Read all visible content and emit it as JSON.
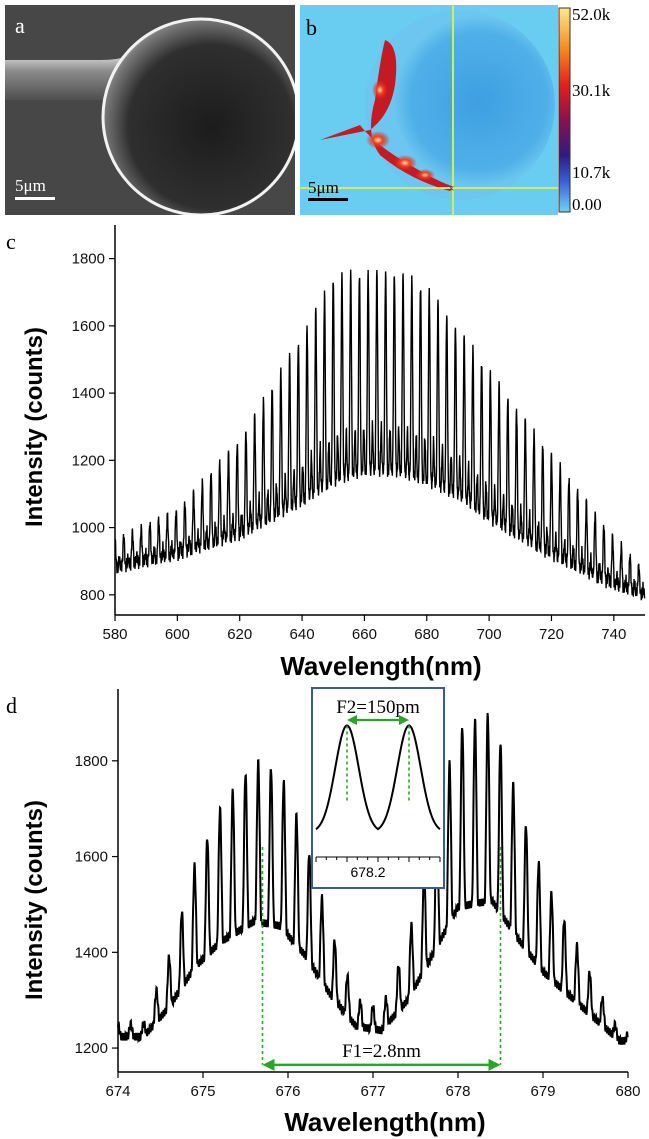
{
  "panels": {
    "a": {
      "label": "a",
      "scalebar": "5μm"
    },
    "b": {
      "label": "b",
      "scalebar": "5μm",
      "colorbar_ticks": [
        "52.0k",
        "30.1k",
        "10.7k",
        "0.00"
      ]
    }
  },
  "chart_data": [
    {
      "id": "c",
      "panel_label": "c",
      "type": "line",
      "xlabel": "Wavelength(nm)",
      "ylabel": "Intensity (counts)",
      "xlim": [
        580,
        750
      ],
      "ylim": [
        740,
        1900
      ],
      "xticks": [
        580,
        600,
        620,
        640,
        660,
        680,
        700,
        720,
        740
      ],
      "yticks": [
        800,
        1000,
        1200,
        1400,
        1600,
        1800
      ],
      "envelope": {
        "x": [
          580,
          600,
          620,
          640,
          650,
          660,
          670,
          680,
          690,
          700,
          720,
          740,
          750
        ],
        "baseline": [
          880,
          920,
          980,
          1080,
          1140,
          1170,
          1170,
          1140,
          1100,
          1030,
          920,
          830,
          800
        ],
        "peak": [
          980,
          1080,
          1320,
          1680,
          1880,
          1890,
          1890,
          1840,
          1700,
          1560,
          1280,
          1000,
          880
        ]
      },
      "fringe_period_nm": 2.8,
      "series_color": "#000000"
    },
    {
      "id": "d",
      "panel_label": "d",
      "type": "line",
      "xlabel": "Wavelength(nm)",
      "ylabel": "Intensity (counts)",
      "xlim": [
        674,
        680
      ],
      "ylim": [
        1150,
        1950
      ],
      "xticks": [
        674,
        675,
        676,
        677,
        678,
        679,
        680
      ],
      "yticks": [
        1200,
        1400,
        1600,
        1800
      ],
      "peaks": [
        {
          "x": 674.3,
          "y": 1250
        },
        {
          "x": 674.6,
          "y": 1390
        },
        {
          "x": 674.9,
          "y": 1580
        },
        {
          "x": 675.2,
          "y": 1700
        },
        {
          "x": 675.6,
          "y": 1800
        },
        {
          "x": 675.9,
          "y": 1780
        },
        {
          "x": 676.2,
          "y": 1640
        },
        {
          "x": 676.5,
          "y": 1450
        },
        {
          "x": 676.8,
          "y": 1300
        },
        {
          "x": 677.1,
          "y": 1280
        },
        {
          "x": 677.4,
          "y": 1420
        },
        {
          "x": 677.7,
          "y": 1640
        },
        {
          "x": 678.0,
          "y": 1870
        },
        {
          "x": 678.4,
          "y": 1900
        },
        {
          "x": 678.7,
          "y": 1720
        },
        {
          "x": 679.0,
          "y": 1560
        },
        {
          "x": 679.3,
          "y": 1450
        },
        {
          "x": 679.6,
          "y": 1340
        },
        {
          "x": 679.9,
          "y": 1230
        }
      ],
      "annotation_F1": {
        "label": "F1=2.8nm",
        "x_start": 675.7,
        "x_end": 678.5,
        "y": 1165
      },
      "inset": {
        "annotation_F2": "F2=150pm",
        "tick_label": "678.2",
        "peak_x": [
          678.125,
          678.275
        ]
      },
      "series_color": "#000000",
      "annotation_color": "#2aa52a"
    }
  ]
}
